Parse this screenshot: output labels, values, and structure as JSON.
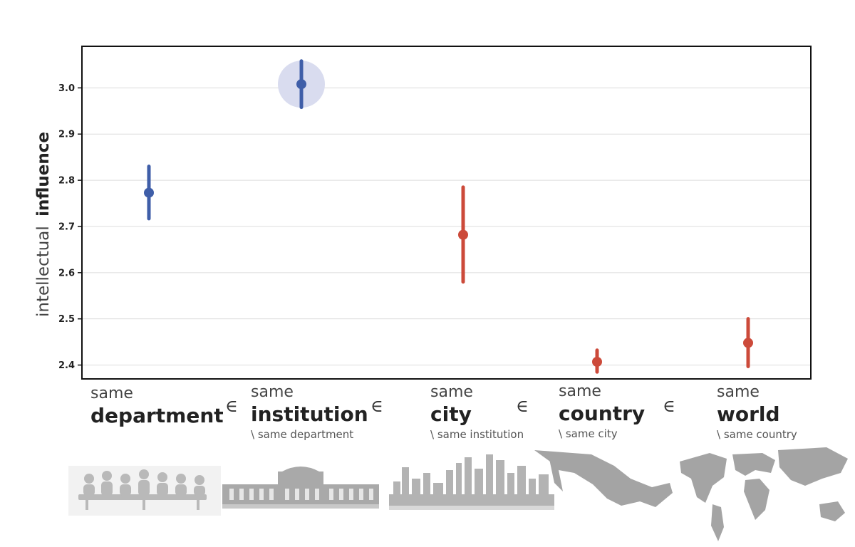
{
  "chart_data": {
    "type": "scatter",
    "title": "",
    "ylabel_light": "intellectual",
    "ylabel_bold": "influence",
    "ylim": [
      2.37,
      3.09
    ],
    "yticks": [
      "2.4",
      "2.5",
      "2.6",
      "2.7",
      "2.8",
      "2.9",
      "3.0"
    ],
    "grid": true,
    "categories": [
      {
        "small": "same",
        "big": "department",
        "sub": ""
      },
      {
        "small": "same",
        "big": "institution",
        "sub": "\\ same department"
      },
      {
        "small": "same",
        "big": "city",
        "sub": "\\ same institution"
      },
      {
        "small": "same",
        "big": "country",
        "sub": "\\ same city"
      },
      {
        "small": "same",
        "big": "world",
        "sub": "\\ same country"
      }
    ],
    "element_of_symbol": "∈",
    "points": [
      {
        "value": 2.773,
        "low": 2.717,
        "high": 2.83,
        "color": "#3f5ea8"
      },
      {
        "value": 3.008,
        "low": 2.958,
        "high": 3.058,
        "color": "#3f5ea8",
        "highlight": true
      },
      {
        "value": 2.682,
        "low": 2.58,
        "high": 2.785,
        "color": "#cc4a3a"
      },
      {
        "value": 2.407,
        "low": 2.385,
        "high": 2.432,
        "color": "#cc4a3a"
      },
      {
        "value": 2.448,
        "low": 2.397,
        "high": 2.5,
        "color": "#cc4a3a"
      }
    ]
  },
  "illustrations": [
    {
      "icon": "meeting-silhouette-icon"
    },
    {
      "icon": "building-silhouette-icon"
    },
    {
      "icon": "city-skyline-icon"
    },
    {
      "icon": "country-map-icon"
    },
    {
      "icon": "world-map-icon"
    }
  ]
}
